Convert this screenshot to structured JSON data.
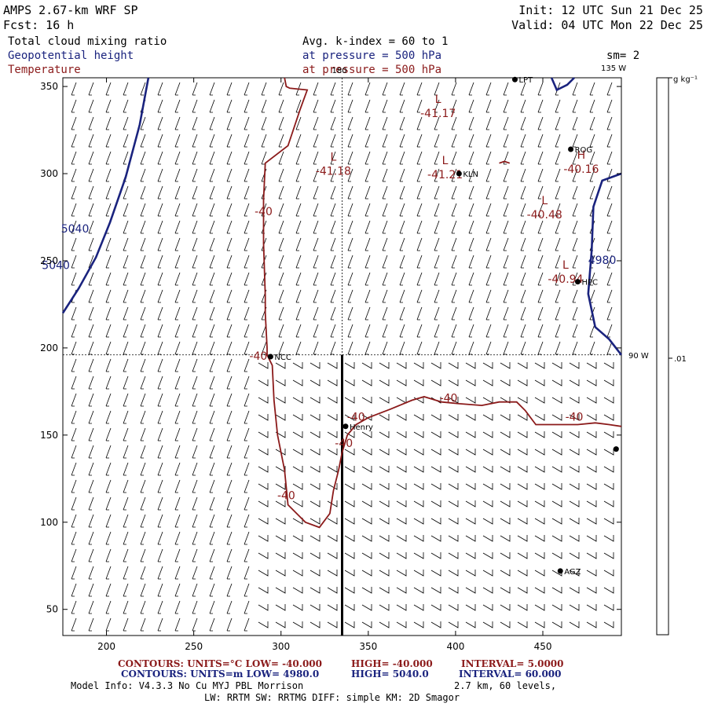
{
  "header": {
    "model": "AMPS 2.67-km WRF SP",
    "forecast": "Fcst:   16 h",
    "init": "Init: 12 UTC Sun 21 Dec 25",
    "valid": "Valid: 04 UTC Mon 22 Dec 25",
    "field1": "Total cloud mixing ratio",
    "field1_level": "Avg. k-index =  60 to   1",
    "field2": "Geopotential height",
    "field2_level": "at pressure =  500 hPa",
    "field3": "Temperature",
    "field3_level": "at pressure =  500 hPa",
    "smoothing": "sm= 2"
  },
  "colors": {
    "temperature": "#8b1a1a",
    "height": "#1a237e",
    "axis": "#000000"
  },
  "chart_data": {
    "type": "contour",
    "title": "",
    "xlim": [
      175,
      495
    ],
    "ylim": [
      35,
      355
    ],
    "xticks": [
      200,
      250,
      300,
      350,
      400,
      450
    ],
    "yticks": [
      50,
      100,
      150,
      200,
      250,
      300,
      350
    ],
    "crosshair": {
      "x": 335,
      "y": 196,
      "label_lon_top": "180",
      "label_lon_right_top": "135 W",
      "label_lon_right": "90 W"
    },
    "cross_section_line": {
      "x": 335,
      "y_from": 35,
      "y_to": 196
    },
    "temperature_contours": [
      {
        "level": -40,
        "points": [
          [
            302,
            355
          ],
          [
            303,
            350
          ],
          [
            305,
            349
          ],
          [
            315,
            348
          ],
          [
            311,
            337
          ],
          [
            304,
            316
          ],
          [
            291,
            306
          ],
          [
            290,
            285
          ],
          [
            290,
            260
          ],
          [
            291,
            230
          ],
          [
            291,
            220
          ],
          [
            292,
            200
          ],
          [
            292,
            196
          ],
          [
            295,
            190
          ],
          [
            296,
            170
          ],
          [
            298,
            150
          ],
          [
            302,
            130
          ],
          [
            304,
            110
          ],
          [
            314,
            100
          ],
          [
            322,
            97
          ],
          [
            328,
            105
          ],
          [
            330,
            118
          ],
          [
            333,
            130
          ],
          [
            335,
            140
          ],
          [
            338,
            150
          ],
          [
            343,
            156
          ],
          [
            350,
            160
          ],
          [
            363,
            165
          ],
          [
            375,
            170
          ],
          [
            382,
            172
          ],
          [
            392,
            169
          ],
          [
            402,
            168
          ],
          [
            415,
            167
          ],
          [
            425,
            169
          ],
          [
            435,
            169
          ],
          [
            440,
            164
          ],
          [
            446,
            156
          ],
          [
            460,
            156
          ],
          [
            470,
            156
          ],
          [
            480,
            157
          ],
          [
            488,
            156
          ],
          [
            495,
            155
          ]
        ]
      },
      {
        "level": -40,
        "closed_small": true,
        "points": [
          [
            425,
            306
          ],
          [
            428,
            307
          ],
          [
            431,
            306
          ]
        ]
      }
    ],
    "height_contours": [
      {
        "level": 5040,
        "points": [
          [
            175,
            220
          ],
          [
            184,
            234
          ],
          [
            194,
            252
          ],
          [
            202,
            272
          ],
          [
            211,
            298
          ],
          [
            219,
            328
          ],
          [
            224,
            355
          ]
        ]
      },
      {
        "level": 4980,
        "points": [
          [
            495,
            300
          ],
          [
            484,
            296
          ],
          [
            479,
            281
          ],
          [
            478,
            256
          ],
          [
            476,
            231
          ],
          [
            480,
            212
          ],
          [
            488,
            205
          ],
          [
            495,
            196
          ]
        ]
      },
      {
        "level": 4980,
        "points": [
          [
            455,
            355
          ],
          [
            458,
            348
          ],
          [
            464,
            351
          ],
          [
            468,
            355
          ]
        ]
      }
    ],
    "contour_labels": [
      {
        "text": "5040",
        "x": 182,
        "y": 268,
        "series": "height"
      },
      {
        "text": "5040",
        "x": 171,
        "y": 247,
        "series": "height"
      },
      {
        "text": "4980",
        "x": 484,
        "y": 250,
        "series": "height"
      },
      {
        "text": "-40",
        "x": 290,
        "y": 278,
        "series": "temperature"
      },
      {
        "text": "-40",
        "x": 287,
        "y": 195,
        "series": "temperature"
      },
      {
        "text": "-40",
        "x": 396,
        "y": 171,
        "series": "temperature"
      },
      {
        "text": "-40",
        "x": 343,
        "y": 160,
        "series": "temperature"
      },
      {
        "text": "-40",
        "x": 336,
        "y": 145,
        "series": "temperature"
      },
      {
        "text": "-40",
        "x": 303,
        "y": 115,
        "series": "temperature"
      },
      {
        "text": "-40",
        "x": 468,
        "y": 160,
        "series": "temperature"
      }
    ],
    "extrema": [
      {
        "kind": "L",
        "value": "-41.17",
        "x": 390,
        "y": 336
      },
      {
        "kind": "L",
        "value": "-41.18",
        "x": 330,
        "y": 303
      },
      {
        "kind": "L",
        "value": "-41.21",
        "x": 394,
        "y": 301
      },
      {
        "kind": "L",
        "value": "-40.48",
        "x": 451,
        "y": 278
      },
      {
        "kind": "H",
        "value": "-40.16",
        "x": 472,
        "y": 304
      },
      {
        "kind": "L",
        "value": "-40.94",
        "x": 463,
        "y": 241
      }
    ],
    "stations": [
      {
        "name": "LPT",
        "x": 434,
        "y": 354
      },
      {
        "name": "ROG",
        "x": 466,
        "y": 314
      },
      {
        "name": "KLN",
        "x": 402,
        "y": 300
      },
      {
        "name": "HPC",
        "x": 470,
        "y": 238
      },
      {
        "name": "NCC",
        "x": 294,
        "y": 195
      },
      {
        "name": "Henry",
        "x": 337,
        "y": 155
      },
      {
        "name": "",
        "x": 492,
        "y": 142
      },
      {
        "name": "AGZ",
        "x": 460,
        "y": 72
      }
    ],
    "colorbar": {
      "unit": "g kg⁻¹",
      "tick_label": ".01",
      "tick_value": 0.01
    }
  },
  "footer": {
    "temp_contours": "CONTOURS:  UNITS=°C  LOW= -40.000",
    "temp_high": "HIGH= -40.000",
    "temp_interval": "INTERVAL=   5.0000",
    "hgt_contours": "CONTOURS:  UNITS=m  LOW=  4980.0",
    "hgt_high": "HIGH=  5040.0",
    "hgt_interval": "INTERVAL=   60.000",
    "model_info": "Model Info: V4.3.3    No Cu    MYJ PBL  Morrison",
    "model_info2": "2.7 km,  60 levels,",
    "model_info3": "LW: RRTM SW: RRTMG    DIFF: simple KM: 2D Smagor"
  }
}
